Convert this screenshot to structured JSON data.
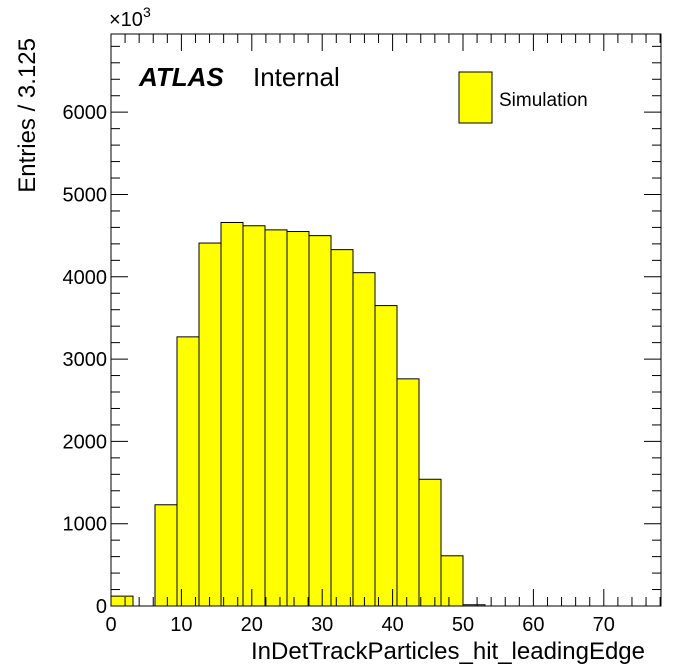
{
  "chart_data": {
    "type": "bar",
    "subtype": "histogram",
    "title": "",
    "xlabel": "InDetTrackParticles_hit_leadingEdge",
    "ylabel": "Entries / 3.125",
    "y_multiplier_label": "×10",
    "y_multiplier_exponent": "3",
    "xlim": [
      0,
      78.125
    ],
    "ylim": [
      0,
      6950
    ],
    "bin_width": 3.125,
    "x_ticks": [
      0,
      10,
      20,
      30,
      40,
      50,
      60,
      70
    ],
    "x_tick_labels": [
      "0",
      "10",
      "20",
      "30",
      "40",
      "50",
      "60",
      "70"
    ],
    "y_ticks": [
      0,
      1000,
      2000,
      3000,
      4000,
      5000,
      6000
    ],
    "y_tick_labels": [
      "0",
      "1000",
      "2000",
      "3000",
      "4000",
      "5000",
      "6000"
    ],
    "bin_edges": [
      0,
      3.125,
      6.25,
      9.375,
      12.5,
      15.625,
      18.75,
      21.875,
      25,
      28.125,
      31.25,
      34.375,
      37.5,
      40.625,
      43.75,
      46.875,
      50,
      53.125,
      56.25,
      59.375,
      62.5,
      65.625,
      68.75,
      71.875,
      75,
      78.125
    ],
    "series": [
      {
        "name": "Simulation",
        "color": "#ffff00",
        "values": [
          120,
          0,
          1230,
          3270,
          4410,
          4660,
          4620,
          4570,
          4550,
          4500,
          4330,
          4050,
          3650,
          2760,
          1540,
          610,
          15,
          0,
          0,
          0,
          0,
          0,
          0,
          0,
          0
        ]
      }
    ],
    "legend": {
      "placement": "top-right",
      "entries": [
        "Simulation"
      ]
    },
    "annotations": {
      "atlas": "ATLAS",
      "status": "Internal"
    },
    "grid": false
  }
}
